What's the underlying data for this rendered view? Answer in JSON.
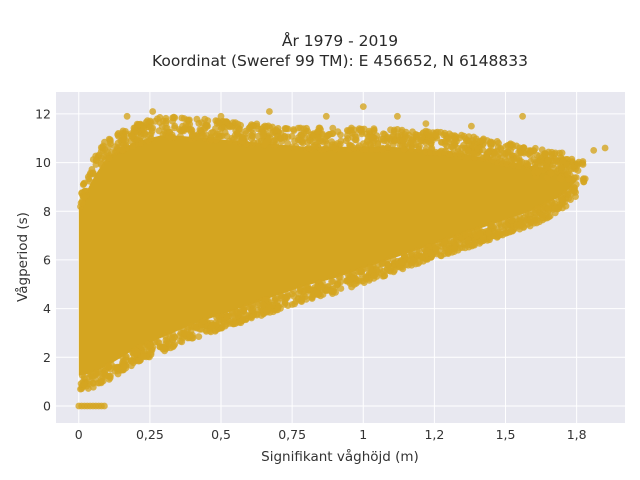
{
  "chart_data": {
    "type": "scatter",
    "title_lines": [
      "År 1979 - 2019",
      "Koordinat (Sweref 99 TM): E 456652, N 6148833"
    ],
    "xlabel": "Signifikant våghöjd (m)",
    "ylabel": "Vågperiod (s)",
    "xlim": [
      -0.08,
      1.92
    ],
    "ylim": [
      -0.7,
      12.9
    ],
    "x_ticks": [
      0,
      0.25,
      0.5,
      0.75,
      1,
      1.25,
      1.5,
      1.75
    ],
    "x_tick_labels": [
      "0",
      "0,25",
      "0,5",
      "0,75",
      "1",
      "1,2",
      "1,5",
      "1,8"
    ],
    "y_ticks": [
      0,
      2,
      4,
      6,
      8,
      10,
      12
    ],
    "y_tick_labels": [
      "0",
      "2",
      "4",
      "6",
      "8",
      "10",
      "12"
    ],
    "grid": true,
    "plot_background": "#e8e8f0",
    "marker_color": "#d4a520",
    "legend": "none",
    "point_cloud_envelope": {
      "x": [
        0.0,
        0.05,
        0.1,
        0.2,
        0.3,
        0.4,
        0.5,
        0.6,
        0.7,
        0.8,
        0.9,
        1.0,
        1.1,
        1.2,
        1.3,
        1.4,
        1.5,
        1.6,
        1.7,
        1.75
      ],
      "y_lower": [
        1.0,
        1.1,
        1.4,
        2.1,
        2.6,
        3.1,
        3.5,
        3.9,
        4.3,
        4.7,
        5.0,
        5.4,
        5.8,
        6.2,
        6.6,
        7.0,
        7.4,
        7.8,
        8.4,
        9.0
      ],
      "y_upper": [
        8.5,
        9.7,
        10.6,
        11.2,
        11.5,
        11.4,
        11.3,
        11.2,
        11.1,
        11.0,
        11.0,
        11.0,
        11.0,
        10.9,
        10.8,
        10.6,
        10.4,
        10.2,
        10.0,
        9.7
      ]
    },
    "zero_period_points": {
      "x": [
        0.0,
        0.01,
        0.02,
        0.03,
        0.04,
        0.05,
        0.06,
        0.07,
        0.08,
        0.09
      ],
      "y": [
        0,
        0,
        0,
        0,
        0,
        0,
        0,
        0,
        0,
        0
      ]
    },
    "sample_outliers": {
      "x": [
        0.17,
        0.26,
        0.33,
        0.5,
        0.67,
        0.87,
        1.0,
        1.12,
        1.22,
        1.38,
        1.56,
        1.65,
        1.81,
        1.85
      ],
      "y": [
        11.9,
        12.1,
        11.7,
        11.9,
        12.1,
        11.9,
        12.3,
        11.9,
        11.6,
        11.5,
        11.9,
        10.1,
        10.5,
        10.6
      ]
    }
  }
}
